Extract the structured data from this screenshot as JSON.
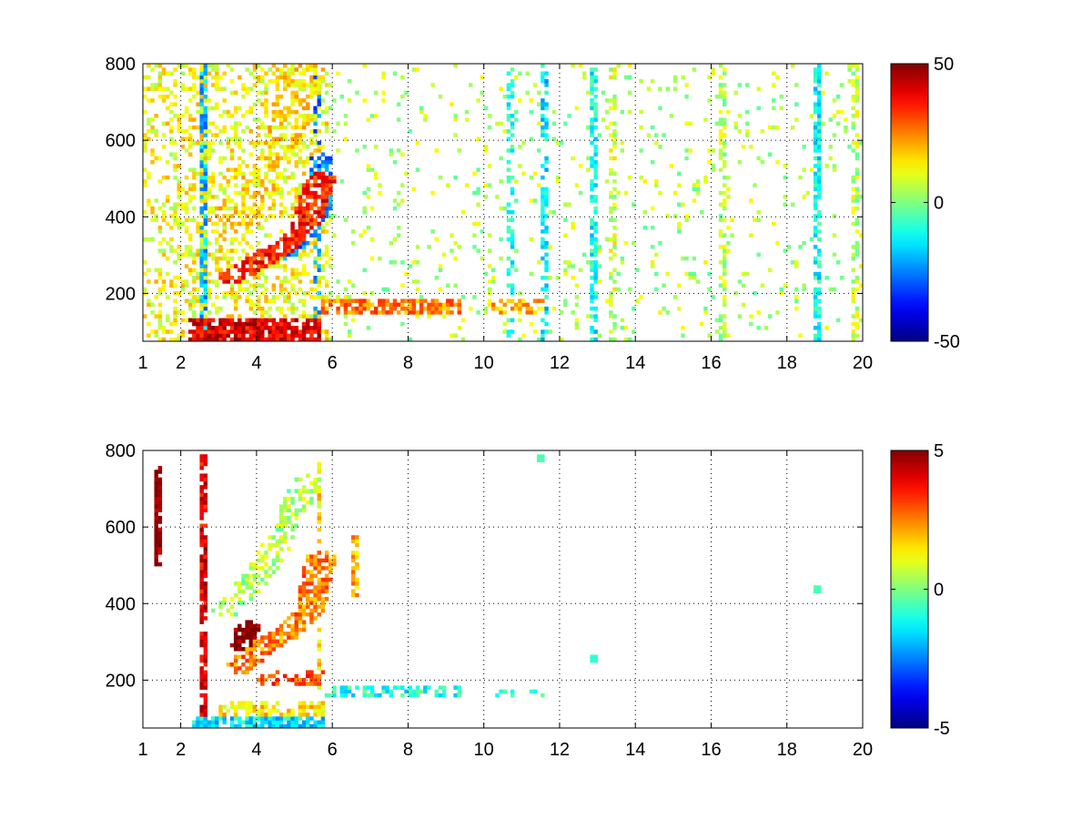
{
  "chart_data": [
    {
      "type": "heatmap",
      "title": "",
      "xlabel": "",
      "ylabel": "",
      "xlim": [
        1,
        20
      ],
      "ylim": [
        75,
        800
      ],
      "grid": true,
      "x_ticks": [
        "1",
        "2",
        "4",
        "6",
        "8",
        "10",
        "12",
        "14",
        "16",
        "18",
        "20"
      ],
      "y_ticks": [
        "200",
        "400",
        "600",
        "800"
      ],
      "colorbar": {
        "min": -50,
        "max": 50,
        "ticks": [
          "50",
          "0",
          "-50"
        ],
        "colormap": "jet"
      },
      "features": [
        {
          "kind": "band",
          "x0": 2.2,
          "x1": 5.7,
          "y0": 75,
          "y1": 140,
          "value": 40,
          "density": 0.85
        },
        {
          "kind": "band",
          "x0": 5.7,
          "x1": 9.4,
          "y0": 150,
          "y1": 190,
          "value": 25,
          "density": 0.7
        },
        {
          "kind": "band",
          "x0": 10.1,
          "x1": 11.6,
          "y0": 150,
          "y1": 190,
          "value": 20,
          "density": 0.5
        },
        {
          "kind": "curve",
          "points": [
            [
              3.3,
              240
            ],
            [
              4.0,
              280
            ],
            [
              4.8,
              330
            ],
            [
              5.3,
              380
            ],
            [
              5.7,
              500
            ]
          ],
          "width": 30,
          "value": 35,
          "density": 0.8
        },
        {
          "kind": "curve",
          "points": [
            [
              3.2,
              380
            ],
            [
              4.0,
              480
            ],
            [
              4.6,
              600
            ],
            [
              5.0,
              700
            ],
            [
              5.2,
              790
            ]
          ],
          "width": 45,
          "value": 15,
          "density": 0.55
        },
        {
          "kind": "curve",
          "points": [
            [
              4.8,
              300
            ],
            [
              5.3,
              350
            ],
            [
              5.7,
              420
            ],
            [
              5.7,
              560
            ]
          ],
          "width": 20,
          "value": -25,
          "density": 0.7
        },
        {
          "kind": "region",
          "x0": 2.0,
          "x1": 5.9,
          "y0": 75,
          "y1": 800,
          "value": 12,
          "density": 0.35
        },
        {
          "kind": "region",
          "x0": 1.0,
          "x1": 2.0,
          "y0": 75,
          "y1": 800,
          "value": 12,
          "density": 0.3
        },
        {
          "kind": "column",
          "x": 2.6,
          "value": -20,
          "density": 0.9
        },
        {
          "kind": "column",
          "x": 5.6,
          "value": -25,
          "density": 0.6
        },
        {
          "kind": "column",
          "x": 10.7,
          "value": -10,
          "density": 0.5
        },
        {
          "kind": "column",
          "x": 11.6,
          "value": -15,
          "density": 0.5
        },
        {
          "kind": "column",
          "x": 12.9,
          "value": -12,
          "density": 0.6
        },
        {
          "kind": "column",
          "x": 13.4,
          "value": 8,
          "density": 0.4
        },
        {
          "kind": "column",
          "x": 16.3,
          "value": 5,
          "density": 0.5
        },
        {
          "kind": "column",
          "x": 18.8,
          "value": -12,
          "density": 0.75
        },
        {
          "kind": "column",
          "x": 19.8,
          "value": 6,
          "density": 0.5
        },
        {
          "kind": "region",
          "x0": 5.9,
          "x1": 20,
          "y0": 75,
          "y1": 800,
          "value": 5,
          "density": 0.06
        }
      ]
    },
    {
      "type": "heatmap",
      "title": "",
      "xlabel": "",
      "ylabel": "",
      "xlim": [
        1,
        20
      ],
      "ylim": [
        75,
        800
      ],
      "grid": true,
      "x_ticks": [
        "1",
        "2",
        "4",
        "6",
        "8",
        "10",
        "12",
        "14",
        "16",
        "18",
        "20"
      ],
      "y_ticks": [
        "200",
        "400",
        "600",
        "800"
      ],
      "colorbar": {
        "min": -5,
        "max": 5,
        "ticks": [
          "5",
          "0",
          "-5"
        ],
        "colormap": "jet"
      },
      "features": [
        {
          "kind": "band",
          "x0": 2.3,
          "x1": 5.8,
          "y0": 75,
          "y1": 105,
          "value": -1.5,
          "density": 0.85
        },
        {
          "kind": "band",
          "x0": 3.0,
          "x1": 5.8,
          "y0": 105,
          "y1": 150,
          "value": 1.5,
          "density": 0.5
        },
        {
          "kind": "band",
          "x0": 5.8,
          "x1": 9.4,
          "y0": 155,
          "y1": 185,
          "value": -1.0,
          "density": 0.55
        },
        {
          "kind": "band",
          "x0": 10.1,
          "x1": 11.6,
          "y0": 160,
          "y1": 180,
          "value": -0.5,
          "density": 0.4
        },
        {
          "kind": "band",
          "x0": 4.0,
          "x1": 5.8,
          "y0": 185,
          "y1": 225,
          "value": 3.0,
          "density": 0.55
        },
        {
          "kind": "curve",
          "points": [
            [
              3.5,
              230
            ],
            [
              4.2,
              290
            ],
            [
              4.9,
              330
            ],
            [
              5.4,
              380
            ],
            [
              5.7,
              520
            ]
          ],
          "width": 30,
          "value": 2.5,
          "density": 0.7
        },
        {
          "kind": "curve",
          "points": [
            [
              3.6,
              290
            ],
            [
              3.8,
              340
            ]
          ],
          "width": 25,
          "value": 5,
          "density": 0.8
        },
        {
          "kind": "curve",
          "points": [
            [
              3.2,
              380
            ],
            [
              4.0,
              470
            ],
            [
              4.6,
              560
            ],
            [
              5.0,
              650
            ],
            [
              5.3,
              720
            ]
          ],
          "width": 30,
          "value": 0.5,
          "density": 0.45
        },
        {
          "kind": "column",
          "x": 1.4,
          "y0": 500,
          "y1": 760,
          "value": 5,
          "density": 0.9
        },
        {
          "kind": "column",
          "x": 2.6,
          "y0": 75,
          "y1": 790,
          "value": 4,
          "density": 0.8
        },
        {
          "kind": "column",
          "x": 5.65,
          "y0": 75,
          "y1": 790,
          "value": 1.5,
          "density": 0.6
        },
        {
          "kind": "column",
          "x": 6.6,
          "y0": 420,
          "y1": 580,
          "value": 2,
          "density": 0.6
        },
        {
          "kind": "dot",
          "x": 11.5,
          "y": 780,
          "value": -0.5
        },
        {
          "kind": "dot",
          "x": 18.8,
          "y": 440,
          "value": -0.5
        },
        {
          "kind": "dot",
          "x": 12.9,
          "y": 260,
          "value": -0.8
        }
      ]
    }
  ]
}
